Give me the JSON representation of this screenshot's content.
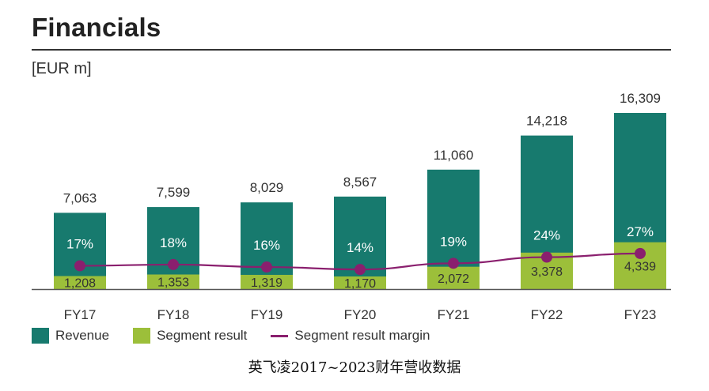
{
  "page": {
    "title": "Financials",
    "unit": "[EUR m]",
    "caption": "英飞凌2017~2023财年营收数据"
  },
  "colors": {
    "revenue": "#177a6e",
    "segment_result": "#9cbf3a",
    "margin_line": "#8a1f6e",
    "axis": "#555555"
  },
  "legend": {
    "revenue": "Revenue",
    "segment_result": "Segment result",
    "margin": "Segment result margin"
  },
  "chart_data": {
    "type": "bar",
    "title": "Financials",
    "categories": [
      "FY17",
      "FY18",
      "FY19",
      "FY20",
      "FY21",
      "FY22",
      "FY23"
    ],
    "series": [
      {
        "name": "Revenue",
        "values": [
          7063,
          7599,
          8029,
          8567,
          11060,
          14218,
          16309
        ],
        "labels": [
          "7,063",
          "7,599",
          "8,029",
          "8,567",
          "11,060",
          "14,218",
          "16,309"
        ]
      },
      {
        "name": "Segment result",
        "values": [
          1208,
          1353,
          1319,
          1170,
          2072,
          3378,
          4339
        ],
        "labels": [
          "1,208",
          "1,353",
          "1,319",
          "1,170",
          "2,072",
          "3,378",
          "4,339"
        ]
      },
      {
        "name": "Segment result margin",
        "type": "line",
        "values": [
          17,
          18,
          16,
          14,
          19,
          24,
          27
        ],
        "labels": [
          "17%",
          "18%",
          "16%",
          "14%",
          "19%",
          "24%",
          "27%"
        ]
      }
    ],
    "ylim": [
      0,
      17000
    ],
    "grid": false,
    "legend_position": "bottom-left"
  }
}
